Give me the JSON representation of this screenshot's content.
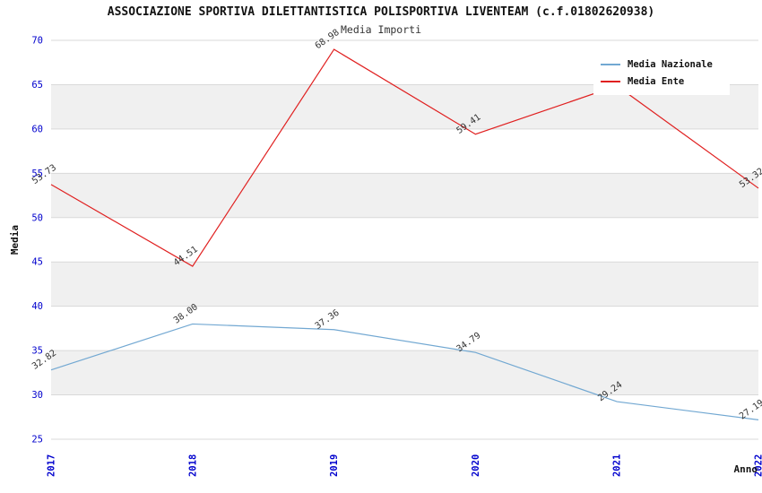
{
  "title": "ASSOCIAZIONE SPORTIVA DILETTANTISTICA POLISPORTIVA LIVENTEAM (c.f.01802620938)",
  "subtitle": "Media Importi",
  "chart_data": {
    "type": "line",
    "categories": [
      "2017",
      "2018",
      "2019",
      "2020",
      "2021",
      "2022"
    ],
    "series": [
      {
        "name": "Media Nazionale",
        "color": "#72a8d2",
        "values": [
          32.82,
          38.0,
          37.36,
          34.79,
          29.24,
          27.19
        ]
      },
      {
        "name": "Media Ente",
        "color": "#e02020",
        "values": [
          53.73,
          44.51,
          68.98,
          59.41,
          64.87,
          53.32
        ]
      }
    ],
    "xlabel": "Anno",
    "ylabel": "Media",
    "ylim": [
      25,
      70
    ],
    "ytick_step": 5,
    "grid": true,
    "legend_position": "top-right",
    "band_colors": [
      "#ffffff",
      "#f0f0f0"
    ],
    "gridline_color": "#d9d9d9",
    "tick_color": "#0000cd",
    "point_label_color": "#333333",
    "axis_title_color": "#111111"
  }
}
